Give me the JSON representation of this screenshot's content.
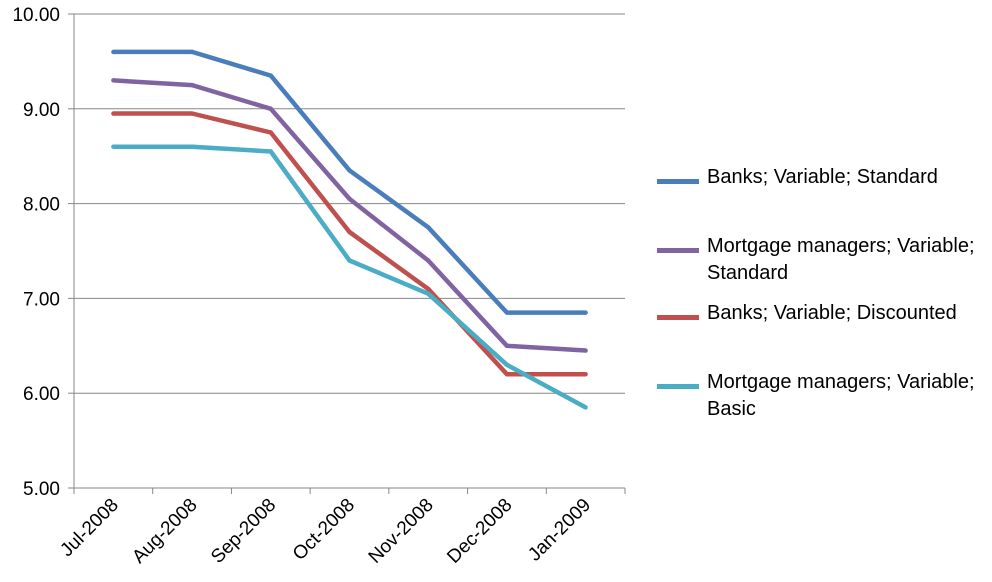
{
  "chart_data": {
    "type": "line",
    "categories": [
      "Jul-2008",
      "Aug-2008",
      "Sep-2008",
      "Oct-2008",
      "Nov-2008",
      "Dec-2008",
      "Jan-2009"
    ],
    "ylim": [
      5.0,
      10.0
    ],
    "yticks": [
      "5.00",
      "6.00",
      "7.00",
      "8.00",
      "9.00",
      "10.00"
    ],
    "grid": true,
    "legend_position": "right",
    "series": [
      {
        "name": "Banks; Variable; Standard",
        "color": "#4A7EBB",
        "values": [
          9.6,
          9.6,
          9.35,
          8.35,
          7.75,
          6.85,
          6.85
        ]
      },
      {
        "name": "Mortgage managers; Variable; Standard",
        "color": "#8064A2",
        "values": [
          9.3,
          9.25,
          9.0,
          8.05,
          7.4,
          6.5,
          6.45
        ]
      },
      {
        "name": "Banks; Variable; Discounted",
        "color": "#C0504D",
        "values": [
          8.95,
          8.95,
          8.75,
          7.7,
          7.1,
          6.2,
          6.2
        ]
      },
      {
        "name": "Mortgage managers; Variable; Basic",
        "color": "#4BACC6",
        "values": [
          8.6,
          8.6,
          8.55,
          7.4,
          7.05,
          6.3,
          5.85
        ]
      }
    ]
  }
}
